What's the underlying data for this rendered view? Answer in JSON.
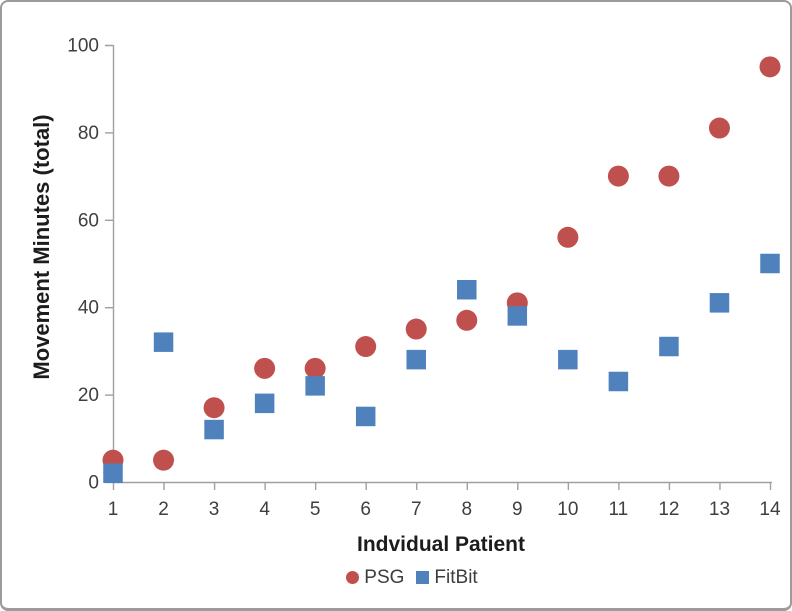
{
  "chart_data": {
    "type": "scatter",
    "title": "",
    "xlabel": "Indvidual Patient",
    "ylabel": "Movement Minutes (total)",
    "x": [
      1,
      2,
      3,
      4,
      5,
      6,
      7,
      8,
      9,
      10,
      11,
      12,
      13,
      14
    ],
    "series": [
      {
        "name": "PSG",
        "marker": "circle",
        "color": "#C0504D",
        "values": [
          5,
          5,
          17,
          26,
          26,
          31,
          35,
          37,
          41,
          56,
          70,
          70,
          81,
          95
        ]
      },
      {
        "name": "FitBit",
        "marker": "square",
        "color": "#4F81BD",
        "values": [
          2,
          32,
          12,
          18,
          22,
          15,
          28,
          44,
          38,
          28,
          23,
          31,
          41,
          50
        ]
      }
    ],
    "xlim": [
      1,
      14
    ],
    "ylim": [
      0,
      100
    ],
    "xticks": [
      1,
      2,
      3,
      4,
      5,
      6,
      7,
      8,
      9,
      10,
      11,
      12,
      13,
      14
    ],
    "yticks": [
      0,
      20,
      40,
      60,
      80,
      100
    ],
    "grid": false,
    "legend_position": "bottom-center"
  },
  "colors": {
    "psg": "#C0504D",
    "fitbit": "#4F81BD",
    "axis_line": "#A0A0A0",
    "tick_label": "#3F3F3F",
    "axis_title": "#1C1C1C",
    "background": "#FFFFFF",
    "frame_border": "#9B9B9B"
  }
}
